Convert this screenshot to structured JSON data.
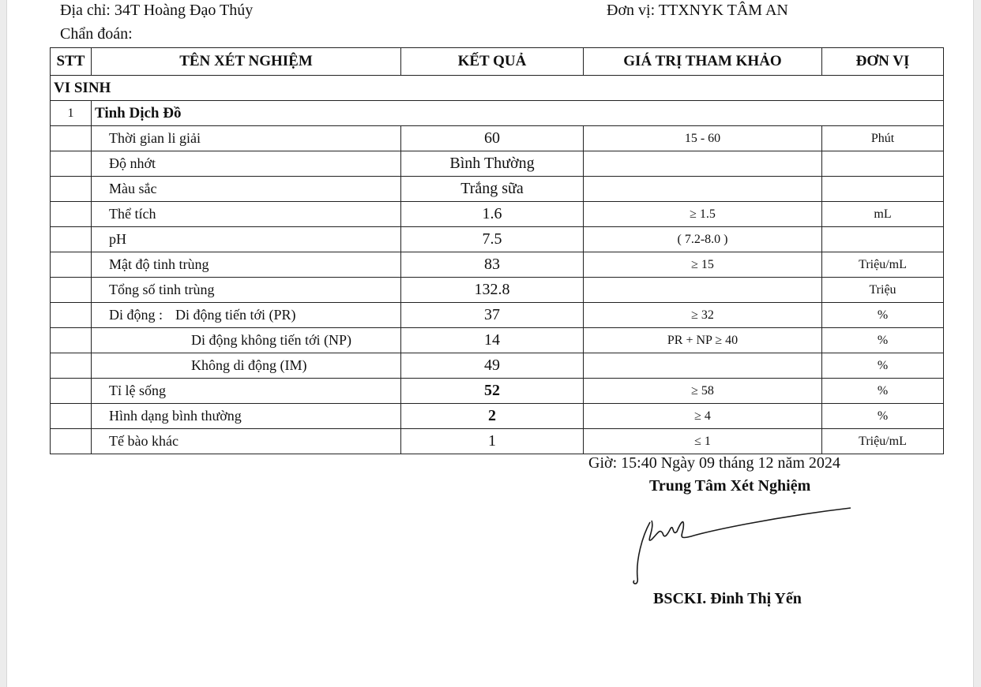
{
  "header": {
    "address": "Địa chỉ: 34T Hoàng Đạo Thúy",
    "unit": "Đơn vị: TTXNYK TÂM AN",
    "diagnosis": "Chẩn đoán:"
  },
  "table": {
    "columns": [
      "STT",
      "TÊN XÉT NGHIỆM",
      "KẾT QUẢ",
      "GIÁ TRỊ THAM KHẢO",
      "ĐƠN VỊ"
    ],
    "section": "VI SINH",
    "group": {
      "stt": "1",
      "name": "Tinh Dịch Đồ"
    },
    "motility_label": "Di động :",
    "rows": [
      {
        "name": "Thời gian li giải",
        "result": "60",
        "ref": "15 - 60",
        "unit": "Phút"
      },
      {
        "name": "Độ nhớt",
        "result": "Bình Thường",
        "ref": "",
        "unit": ""
      },
      {
        "name": "Màu sắc",
        "result": "Trắng sữa",
        "ref": "",
        "unit": ""
      },
      {
        "name": "Thể tích",
        "result": "1.6",
        "ref": "≥ 1.5",
        "unit": "mL"
      },
      {
        "name": "pH",
        "result": "7.5",
        "ref": "( 7.2-8.0 )",
        "unit": ""
      },
      {
        "name": "Mật độ tinh trùng",
        "result": "83",
        "ref": "≥ 15",
        "unit": "Triệu/mL"
      },
      {
        "name": "Tổng số tinh trùng",
        "result": "132.8",
        "ref": "",
        "unit": "Triệu"
      },
      {
        "name": "Di động tiến tới (PR)",
        "result": "37",
        "ref": "≥ 32",
        "unit": "%"
      },
      {
        "name": "Di động không tiến tới (NP)",
        "result": "14",
        "ref": "PR + NP ≥ 40",
        "unit": "%"
      },
      {
        "name": "Không di động (IM)",
        "result": "49",
        "ref": "",
        "unit": "%"
      },
      {
        "name": "Tỉ lệ sống",
        "result": "52",
        "ref": "≥ 58",
        "unit": "%"
      },
      {
        "name": "Hình dạng bình thường",
        "result": "2",
        "ref": "≥ 4",
        "unit": "%"
      },
      {
        "name": "Tế bào khác",
        "result": "1",
        "ref": "≤ 1",
        "unit": "Triệu/mL"
      }
    ]
  },
  "footer": {
    "datetime": "Giờ: 15:40  Ngày 09 tháng 12 năm 2024",
    "center": "Trung Tâm Xét Nghiệm",
    "signature_text": "Signature",
    "doctor": "BSCKI. Đinh Thị Yến"
  }
}
